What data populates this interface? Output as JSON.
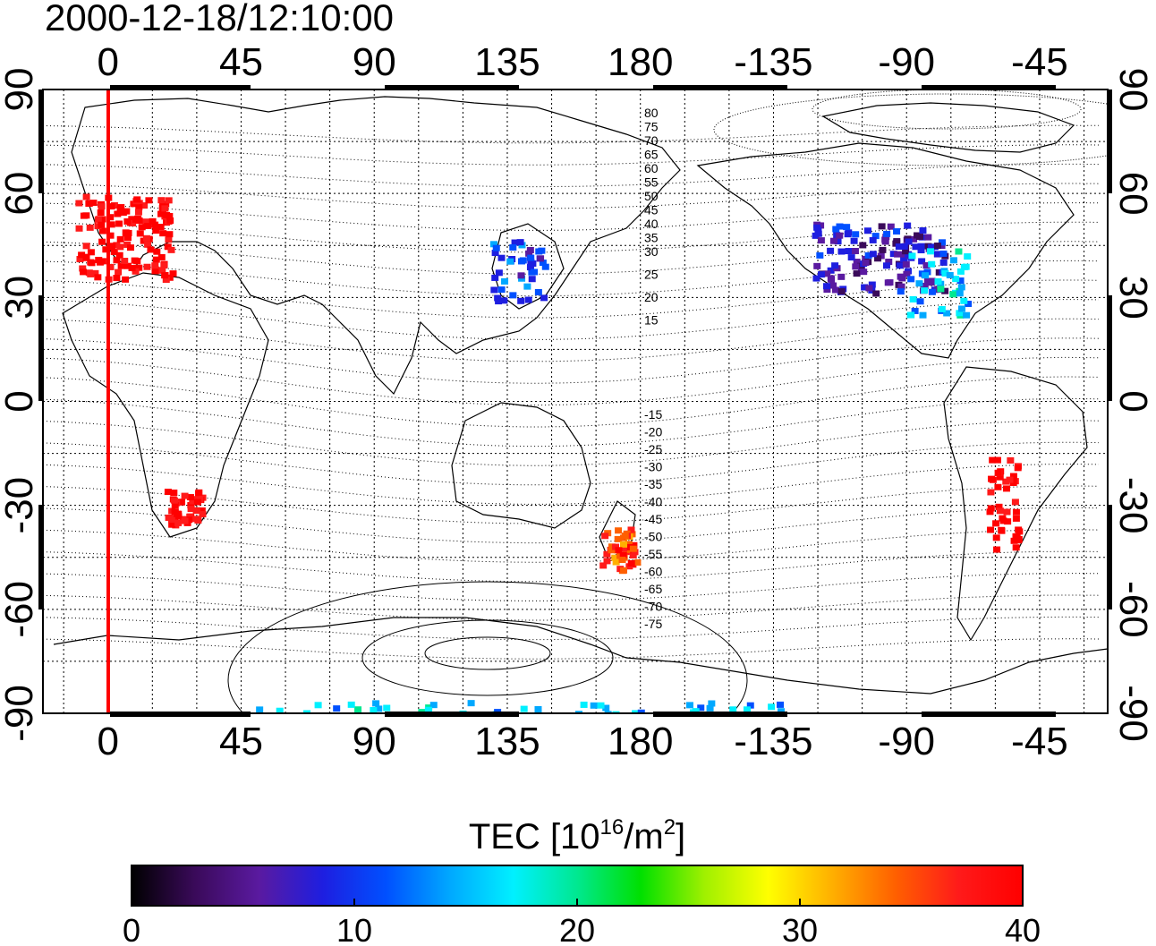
{
  "title": "2000-12-18/12:10:00",
  "top_axis_labels": [
    "0",
    "45",
    "90",
    "135",
    "180",
    "-135",
    "-90",
    "-45"
  ],
  "bottom_axis_labels": [
    "0",
    "45",
    "90",
    "135",
    "180",
    "-135",
    "-90",
    "-45"
  ],
  "left_axis_labels": [
    "90",
    "60",
    "30",
    "0",
    "-30",
    "-60",
    "-90"
  ],
  "right_axis_labels": [
    "90",
    "60",
    "30",
    "0",
    "-30",
    "-60",
    "-90"
  ],
  "contour_labels_north": [
    "80",
    "75",
    "70",
    "65",
    "60",
    "55",
    "50",
    "45",
    "40",
    "35",
    "30",
    "25",
    "20",
    "15"
  ],
  "contour_labels_south": [
    "-15",
    "-20",
    "-25",
    "-30",
    "-35",
    "-40",
    "-45",
    "-50",
    "-55",
    "-60",
    "-65",
    "-70",
    "-75"
  ],
  "colorbar": {
    "label_main": "TEC  [10",
    "label_sup1": "16",
    "label_mid": "/m",
    "label_sup2": "2",
    "label_end": "]",
    "tick_labels": [
      "0",
      "10",
      "20",
      "30",
      "40"
    ],
    "min": 0,
    "max": 40,
    "colors": [
      "#000000",
      "#3a0a5a",
      "#5a1aa0",
      "#1e1ee0",
      "#0050ff",
      "#00a8ff",
      "#00f0ff",
      "#00e890",
      "#00e000",
      "#a0f000",
      "#ffff00",
      "#ffb000",
      "#ff6000",
      "#ff1a1a",
      "#ff0000"
    ]
  },
  "colors": {
    "marker_line": "#ff0000",
    "grid": "#000000"
  },
  "tec_clusters": [
    {
      "region": "europe",
      "lon": 5,
      "lat": 48,
      "value": 40
    },
    {
      "region": "usa",
      "lon": -100,
      "lat": 42,
      "value": 7
    },
    {
      "region": "east-us",
      "lon": -80,
      "lat": 35,
      "value": 16
    },
    {
      "region": "japan",
      "lon": 138,
      "lat": 38,
      "value": 10
    },
    {
      "region": "new-zealand",
      "lon": 172,
      "lat": -42,
      "value": 36
    },
    {
      "region": "south-america",
      "lon": -58,
      "lat": -28,
      "value": 40
    },
    {
      "region": "south-africa",
      "lon": 25,
      "lat": -30,
      "value": 40
    },
    {
      "region": "antarctic-rim",
      "lon": 140,
      "lat": -88,
      "value": 15
    }
  ]
}
